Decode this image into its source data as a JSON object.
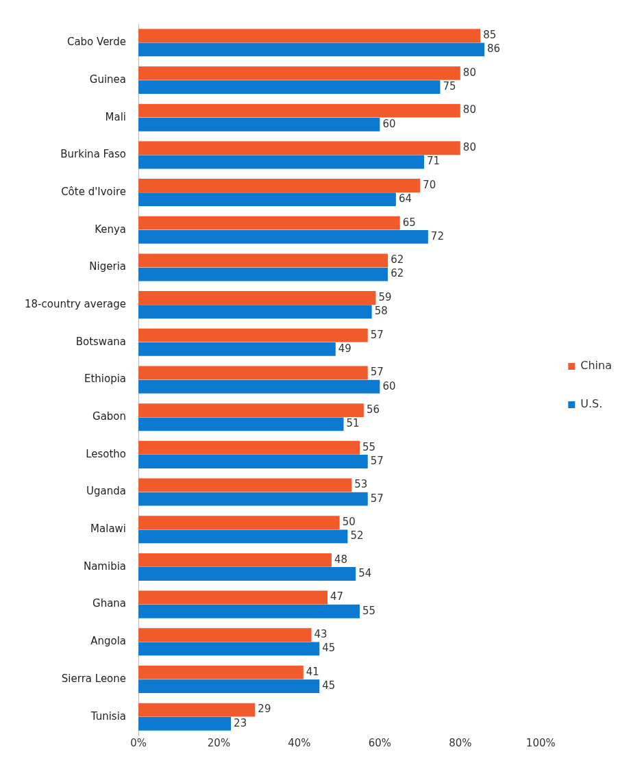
{
  "chart_data": {
    "type": "bar",
    "orientation": "horizontal",
    "categories": [
      "Cabo Verde",
      "Guinea",
      "Mali",
      "Burkina Faso",
      "Côte d'Ivoire",
      "Kenya",
      "Nigeria",
      "18-country average",
      "Botswana",
      "Ethiopia",
      "Gabon",
      "Lesotho",
      "Uganda",
      "Malawi",
      "Namibia",
      "Ghana",
      "Angola",
      "Sierra Leone",
      "Tunisia"
    ],
    "series": [
      {
        "name": "China",
        "color": "#f15a2b",
        "values": [
          85,
          80,
          80,
          80,
          70,
          65,
          62,
          59,
          57,
          57,
          56,
          55,
          53,
          50,
          48,
          47,
          43,
          41,
          29
        ]
      },
      {
        "name": "U.S.",
        "color": "#0b7ad0",
        "values": [
          86,
          75,
          60,
          71,
          64,
          72,
          62,
          58,
          49,
          60,
          51,
          57,
          57,
          52,
          54,
          55,
          45,
          45,
          23
        ]
      }
    ],
    "xlim": [
      0,
      100
    ],
    "xticks": [
      {
        "value": 0,
        "label": "0%"
      },
      {
        "value": 20,
        "label": "20%"
      },
      {
        "value": 40,
        "label": "40%"
      },
      {
        "value": 60,
        "label": "60%"
      },
      {
        "value": 80,
        "label": "80%"
      },
      {
        "value": 100,
        "label": "100%"
      }
    ],
    "data_labels": true,
    "grid": false,
    "legend": "right"
  }
}
